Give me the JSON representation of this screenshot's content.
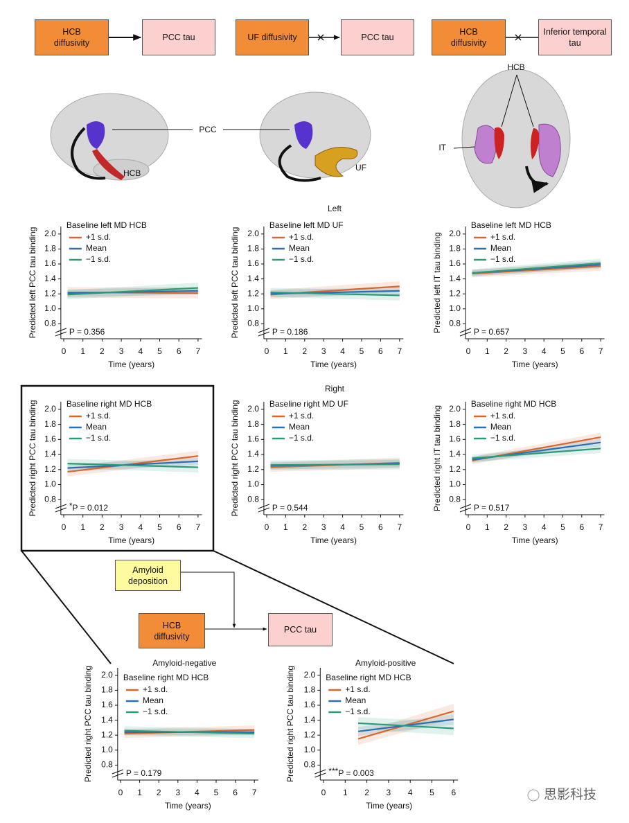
{
  "diagram": {
    "top_boxes": [
      "HCB diffusivity",
      "PCC tau",
      "UF diffusivity",
      "PCC tau",
      "HCB diffusivity",
      "Inferior temporal tau"
    ],
    "brain_labels": [
      "PCC",
      "HCB",
      "UF",
      "HCB",
      "IT"
    ],
    "section_labels": [
      "Left",
      "Right"
    ],
    "bottom_boxes": [
      "Amyloid deposition",
      "HCB diffusivity",
      "PCC tau"
    ],
    "watermark": "思影科技"
  },
  "chart_data": [
    {
      "type": "line",
      "title": "Baseline left MD HCB",
      "ylabel": "Predicted left PCC tau binding",
      "xlabel": "Time (years)",
      "annotation": "P = 0.356",
      "xlim": [
        -0.15,
        7.2
      ],
      "ylim": [
        0.6,
        2.1
      ],
      "xticks": [
        0,
        1,
        2,
        3,
        4,
        5,
        6,
        7
      ],
      "yticks": [
        0.8,
        {
          "value": 1,
          "label": "1.0"
        },
        1.2,
        1.4,
        1.6,
        1.8,
        {
          "value": 2,
          "label": "2.0"
        }
      ],
      "x": [
        0.2,
        7
      ],
      "series": [
        {
          "name": "+1 s.d.",
          "color": "#d9662b",
          "values": [
            1.22,
            1.21
          ],
          "lower": [
            1.15,
            1.14
          ],
          "upper": [
            1.29,
            1.28
          ]
        },
        {
          "name": "Mean",
          "color": "#2a6fb0",
          "values": [
            1.21,
            1.24
          ],
          "lower": [
            1.16,
            1.19
          ],
          "upper": [
            1.26,
            1.29
          ]
        },
        {
          "name": "−1 s.d.",
          "color": "#2a9a78",
          "values": [
            1.19,
            1.28
          ],
          "lower": [
            1.13,
            1.21
          ],
          "upper": [
            1.25,
            1.35
          ]
        }
      ]
    },
    {
      "type": "line",
      "title": "Baseline left MD UF",
      "ylabel": "Predicted left PCC tau binding",
      "xlabel": "Time (years)",
      "annotation": "P = 0.186",
      "xlim": [
        -0.15,
        7.2
      ],
      "ylim": [
        0.6,
        2.1
      ],
      "xticks": [
        0,
        1,
        2,
        3,
        4,
        5,
        6,
        7
      ],
      "yticks": [
        0.8,
        {
          "value": 1,
          "label": "1.0"
        },
        1.2,
        1.4,
        1.6,
        1.8,
        {
          "value": 2,
          "label": "2.0"
        }
      ],
      "x": [
        0.2,
        7
      ],
      "series": [
        {
          "name": "+1 s.d.",
          "color": "#d9662b",
          "values": [
            1.19,
            1.3
          ],
          "lower": [
            1.13,
            1.23
          ],
          "upper": [
            1.25,
            1.37
          ]
        },
        {
          "name": "Mean",
          "color": "#2a6fb0",
          "values": [
            1.2,
            1.24
          ],
          "lower": [
            1.15,
            1.19
          ],
          "upper": [
            1.25,
            1.29
          ]
        },
        {
          "name": "−1 s.d.",
          "color": "#2a9a78",
          "values": [
            1.22,
            1.18
          ],
          "lower": [
            1.16,
            1.11
          ],
          "upper": [
            1.28,
            1.25
          ]
        }
      ]
    },
    {
      "type": "line",
      "title": "Baseline left MD HCB",
      "ylabel": "Predicted left IT tau binding",
      "xlabel": "Time (years)",
      "annotation": "P = 0.657",
      "xlim": [
        -0.15,
        7.2
      ],
      "ylim": [
        0.6,
        2.1
      ],
      "xticks": [
        0,
        1,
        2,
        3,
        4,
        5,
        6,
        7
      ],
      "yticks": [
        0.8,
        {
          "value": 1,
          "label": "1.0"
        },
        1.2,
        1.4,
        1.6,
        1.8,
        {
          "value": 2,
          "label": "2.0"
        }
      ],
      "x": [
        0.2,
        7
      ],
      "series": [
        {
          "name": "+1 s.d.",
          "color": "#d9662b",
          "values": [
            1.47,
            1.57
          ],
          "lower": [
            1.42,
            1.51
          ],
          "upper": [
            1.52,
            1.63
          ]
        },
        {
          "name": "Mean",
          "color": "#2a6fb0",
          "values": [
            1.48,
            1.59
          ],
          "lower": [
            1.44,
            1.54
          ],
          "upper": [
            1.52,
            1.64
          ]
        },
        {
          "name": "−1 s.d.",
          "color": "#2a9a78",
          "values": [
            1.48,
            1.61
          ],
          "lower": [
            1.43,
            1.55
          ],
          "upper": [
            1.53,
            1.67
          ]
        }
      ]
    },
    {
      "type": "line",
      "title": "Baseline right MD HCB",
      "ylabel": "Predicted right PCC tau binding",
      "xlabel": "Time (years)",
      "significance": "*",
      "annotation": "P = 0.012",
      "xlim": [
        -0.15,
        7.2
      ],
      "ylim": [
        0.6,
        2.1
      ],
      "xticks": [
        0,
        1,
        2,
        3,
        4,
        5,
        6,
        7
      ],
      "yticks": [
        0.8,
        {
          "value": 1,
          "label": "1.0"
        },
        1.2,
        1.4,
        1.6,
        1.8,
        {
          "value": 2,
          "label": "2.0"
        }
      ],
      "x": [
        0.2,
        7
      ],
      "series": [
        {
          "name": "+1 s.d.",
          "color": "#d9662b",
          "values": [
            1.17,
            1.38
          ],
          "lower": [
            1.11,
            1.31
          ],
          "upper": [
            1.23,
            1.45
          ]
        },
        {
          "name": "Mean",
          "color": "#2a6fb0",
          "values": [
            1.22,
            1.31
          ],
          "lower": [
            1.17,
            1.26
          ],
          "upper": [
            1.27,
            1.36
          ]
        },
        {
          "name": "−1 s.d.",
          "color": "#2a9a78",
          "values": [
            1.28,
            1.23
          ],
          "lower": [
            1.22,
            1.16
          ],
          "upper": [
            1.34,
            1.3
          ]
        }
      ]
    },
    {
      "type": "line",
      "title": "Baseline right MD UF",
      "ylabel": "Predicted right PCC tau binding",
      "xlabel": "Time (years)",
      "annotation": "P = 0.544",
      "xlim": [
        -0.15,
        7.2
      ],
      "ylim": [
        0.6,
        2.1
      ],
      "xticks": [
        0,
        1,
        2,
        3,
        4,
        5,
        6,
        7
      ],
      "yticks": [
        0.8,
        {
          "value": 1,
          "label": "1.0"
        },
        1.2,
        1.4,
        1.6,
        1.8,
        {
          "value": 2,
          "label": "2.0"
        }
      ],
      "x": [
        0.2,
        7
      ],
      "series": [
        {
          "name": "+1 s.d.",
          "color": "#d9662b",
          "values": [
            1.23,
            1.29
          ],
          "lower": [
            1.17,
            1.22
          ],
          "upper": [
            1.29,
            1.36
          ]
        },
        {
          "name": "Mean",
          "color": "#2a6fb0",
          "values": [
            1.25,
            1.28
          ],
          "lower": [
            1.2,
            1.23
          ],
          "upper": [
            1.3,
            1.33
          ]
        },
        {
          "name": "−1 s.d.",
          "color": "#2a9a78",
          "values": [
            1.26,
            1.27
          ],
          "lower": [
            1.2,
            1.2
          ],
          "upper": [
            1.32,
            1.34
          ]
        }
      ]
    },
    {
      "type": "line",
      "title": "Baseline right MD HCB",
      "ylabel": "Predicted right IT tau binding",
      "xlabel": "Time (years)",
      "annotation": "P = 0.517",
      "xlim": [
        -0.15,
        7.2
      ],
      "ylim": [
        0.6,
        2.1
      ],
      "xticks": [
        0,
        1,
        2,
        3,
        4,
        5,
        6,
        7
      ],
      "yticks": [
        0.8,
        {
          "value": 1,
          "label": "1.0"
        },
        1.2,
        1.4,
        1.6,
        1.8,
        {
          "value": 2,
          "label": "2.0"
        }
      ],
      "x": [
        0.2,
        7
      ],
      "series": [
        {
          "name": "+1 s.d.",
          "color": "#d9662b",
          "values": [
            1.32,
            1.63
          ],
          "lower": [
            1.27,
            1.57
          ],
          "upper": [
            1.37,
            1.69
          ]
        },
        {
          "name": "Mean",
          "color": "#2a6fb0",
          "values": [
            1.33,
            1.56
          ],
          "lower": [
            1.29,
            1.51
          ],
          "upper": [
            1.37,
            1.61
          ]
        },
        {
          "name": "−1 s.d.",
          "color": "#2a9a78",
          "values": [
            1.35,
            1.48
          ],
          "lower": [
            1.3,
            1.42
          ],
          "upper": [
            1.4,
            1.54
          ]
        }
      ]
    },
    {
      "type": "line",
      "heading": "Amyloid-negative",
      "title": "Baseline right MD HCB",
      "ylabel": "Predicted right PCC tau binding",
      "xlabel": "Time (years)",
      "annotation": "P = 0.179",
      "xlim": [
        -0.15,
        7.2
      ],
      "ylim": [
        0.6,
        2.1
      ],
      "xticks": [
        0,
        1,
        2,
        3,
        4,
        5,
        6,
        7
      ],
      "yticks": [
        0.8,
        {
          "value": 1,
          "label": "1.0"
        },
        1.2,
        1.4,
        1.6,
        1.8,
        {
          "value": 2,
          "label": "2.0"
        }
      ],
      "x": [
        0.2,
        7
      ],
      "series": [
        {
          "name": "+1 s.d.",
          "color": "#d9662b",
          "values": [
            1.22,
            1.27
          ],
          "lower": [
            1.16,
            1.21
          ],
          "upper": [
            1.28,
            1.33
          ]
        },
        {
          "name": "Mean",
          "color": "#2a6fb0",
          "values": [
            1.24,
            1.24
          ],
          "lower": [
            1.2,
            1.2
          ],
          "upper": [
            1.28,
            1.28
          ]
        },
        {
          "name": "−1 s.d.",
          "color": "#2a9a78",
          "values": [
            1.26,
            1.22
          ],
          "lower": [
            1.2,
            1.16
          ],
          "upper": [
            1.32,
            1.28
          ]
        }
      ]
    },
    {
      "type": "line",
      "heading": "Amyloid-positive",
      "title": "Baseline right MD HCB",
      "ylabel": "Predicted right PCC tau binding",
      "xlabel": "Time (years)",
      "significance": "***",
      "annotation": "P = 0.003",
      "xlim": [
        -0.15,
        6.2
      ],
      "ylim": [
        0.6,
        2.1
      ],
      "xticks": [
        0,
        1,
        2,
        3,
        4,
        5,
        6
      ],
      "yticks": [
        0.8,
        {
          "value": 1,
          "label": "1.0"
        },
        1.2,
        1.4,
        1.6,
        1.8,
        {
          "value": 2,
          "label": "2.0"
        }
      ],
      "x": [
        1.6,
        6
      ],
      "series": [
        {
          "name": "+1 s.d.",
          "color": "#d9662b",
          "values": [
            1.15,
            1.52
          ],
          "lower": [
            1.07,
            1.42
          ],
          "upper": [
            1.23,
            1.62
          ]
        },
        {
          "name": "Mean",
          "color": "#2a6fb0",
          "values": [
            1.25,
            1.41
          ],
          "lower": [
            1.19,
            1.34
          ],
          "upper": [
            1.31,
            1.48
          ]
        },
        {
          "name": "−1 s.d.",
          "color": "#2a9a78",
          "values": [
            1.36,
            1.29
          ],
          "lower": [
            1.28,
            1.2
          ],
          "upper": [
            1.44,
            1.38
          ]
        }
      ]
    }
  ]
}
